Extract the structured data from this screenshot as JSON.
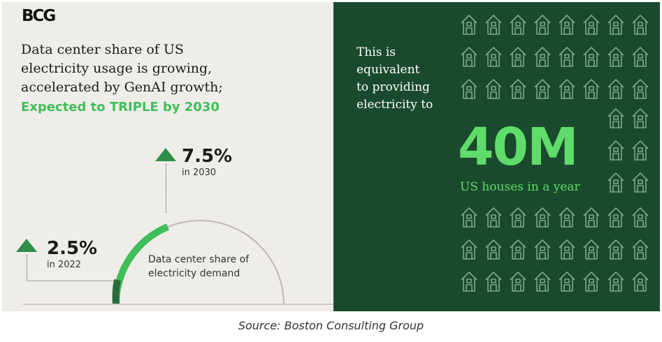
{
  "logo": "BCG",
  "headline": {
    "line1": "Data center share of US",
    "line2": "electricity usage is growing,",
    "line3": "accelerated by GenAI growth;",
    "accent": "Expected to TRIPLE by 2030"
  },
  "stats": {
    "future": {
      "value": "7.5%",
      "year": "in 2030"
    },
    "current": {
      "value": "2.5%",
      "year": "in 2022"
    }
  },
  "arc_label": {
    "line1": "Data center share of",
    "line2": "electricity demand"
  },
  "right": {
    "line1": "This is",
    "line2": "equivalent",
    "line3": "to providing",
    "line4": "electricity to",
    "big_number": "40M",
    "big_sub": "US houses in a year"
  },
  "source": "Source: Boston Consulting Group",
  "colors": {
    "left_bg": "#efedea",
    "right_bg": "#1a4a2d",
    "accent_green": "#3fbf58",
    "bright_green": "#5fdc69",
    "arrow_green": "#2e8f48"
  },
  "icons": {
    "house": "house-outline-icon",
    "arrow": "up-triangle-icon"
  }
}
